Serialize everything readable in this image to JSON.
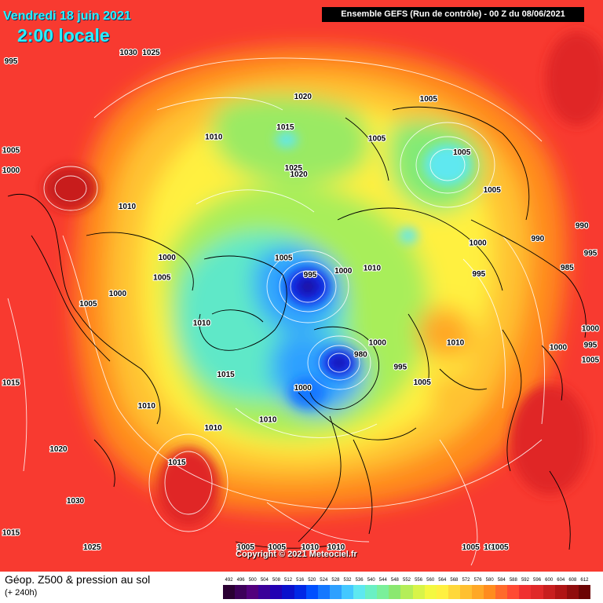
{
  "header": {
    "date": "Vendredi 18 juin 2021",
    "time": "2:00 locale",
    "run": "Ensemble GEFS  (Run de contrôle)  -  00 Z du 08/06/2021"
  },
  "footer": {
    "title": "Géop. Z500 & pression au sol",
    "subtitle": "(+ 240h)",
    "copyright": "Copyright © 2021 Meteociel.fr"
  },
  "legend": {
    "values": [
      "492",
      "496",
      "500",
      "504",
      "508",
      "512",
      "516",
      "520",
      "524",
      "528",
      "532",
      "536",
      "540",
      "544",
      "548",
      "552",
      "556",
      "560",
      "564",
      "568",
      "572",
      "576",
      "580",
      "584",
      "588",
      "592",
      "596",
      "600",
      "604",
      "608",
      "612"
    ],
    "colors": [
      "#2a0033",
      "#3d005a",
      "#52007d",
      "#3a0099",
      "#2200b3",
      "#0a10cc",
      "#0028e6",
      "#0050ff",
      "#1478ff",
      "#2ea0ff",
      "#44c8ff",
      "#5ee8f0",
      "#6af0c4",
      "#7af09a",
      "#8ae870",
      "#b4ee58",
      "#d8f448",
      "#f4f840",
      "#fff040",
      "#ffd83a",
      "#ffc030",
      "#ffa826",
      "#ff8c1e",
      "#ff6a2a",
      "#ff4a32",
      "#f03030",
      "#e02828",
      "#c81e1e",
      "#b01414",
      "#900c0c",
      "#6c0404"
    ]
  },
  "pressure_labels": [
    {
      "text": "1005",
      "lon": 150,
      "lat": 54
    },
    {
      "text": "1030",
      "lon": -150,
      "lat": 38
    },
    {
      "text": "1025",
      "lon": -152,
      "lat": 41
    },
    {
      "text": "1020",
      "lon": -178,
      "lat": 58
    },
    {
      "text": "1015",
      "lon": -172,
      "lat": 62
    },
    {
      "text": "1005",
      "lon": 158,
      "lat": 62
    },
    {
      "text": "1005",
      "lon": 135,
      "lat": 57
    },
    {
      "text": "990",
      "lon": 106,
      "lat": 48
    },
    {
      "text": "990",
      "lon": 106,
      "lat": 54
    },
    {
      "text": "995",
      "lon": 100,
      "lat": 47
    },
    {
      "text": "985",
      "lon": 98,
      "lat": 51
    },
    {
      "text": "1005",
      "lon": 122,
      "lat": 57
    },
    {
      "text": "1000",
      "lon": 110,
      "lat": 62
    },
    {
      "text": "995",
      "lon": 100,
      "lat": 63
    },
    {
      "text": "995",
      "lon": -120,
      "lat": 24
    },
    {
      "text": "1000",
      "lon": -108,
      "lat": 30
    },
    {
      "text": "1005",
      "lon": -110,
      "lat": 28
    },
    {
      "text": "1010",
      "lon": -150,
      "lat": 60
    },
    {
      "text": "1020",
      "lon": -175,
      "lat": 69
    },
    {
      "text": "1025",
      "lon": -173,
      "lat": 68
    },
    {
      "text": "1010",
      "lon": -118,
      "lat": 58
    },
    {
      "text": "1000",
      "lon": -108,
      "lat": 66
    },
    {
      "text": "1000",
      "lon": -93,
      "lat": 60
    },
    {
      "text": "1005",
      "lon": -100,
      "lat": 66
    },
    {
      "text": "1005",
      "lon": -90,
      "lat": 56
    },
    {
      "text": "1015",
      "lon": -78,
      "lat": 36
    },
    {
      "text": "1010",
      "lon": -80,
      "lat": 72
    },
    {
      "text": "1015",
      "lon": -50,
      "lat": 72
    },
    {
      "text": "995",
      "lon": 180,
      "lat": 85
    },
    {
      "text": "1005",
      "lon": -150,
      "lat": 81
    },
    {
      "text": "1000",
      "lon": 135,
      "lat": 82
    },
    {
      "text": "1010",
      "lon": 120,
      "lat": 78
    },
    {
      "text": "1010",
      "lon": 75,
      "lat": 66
    },
    {
      "text": "1000",
      "lon": 80,
      "lat": 52
    },
    {
      "text": "1005",
      "lon": 80,
      "lat": 43
    },
    {
      "text": "1000",
      "lon": 85,
      "lat": 48
    },
    {
      "text": "995",
      "lon": 83,
      "lat": 41
    },
    {
      "text": "1000",
      "lon": 60,
      "lat": 77
    },
    {
      "text": "980",
      "lon": 45,
      "lat": 78
    },
    {
      "text": "995",
      "lon": 55,
      "lat": 72
    },
    {
      "text": "1005",
      "lon": 55,
      "lat": 68
    },
    {
      "text": "1000",
      "lon": -5,
      "lat": 76
    },
    {
      "text": "1010",
      "lon": -20,
      "lat": 70
    },
    {
      "text": "1010",
      "lon": -38,
      "lat": 65
    },
    {
      "text": "1010",
      "lon": -58,
      "lat": 60
    },
    {
      "text": "1020",
      "lon": -60,
      "lat": 47
    },
    {
      "text": "1030",
      "lon": -50,
      "lat": 45
    },
    {
      "text": "1015",
      "lon": -40,
      "lat": 58
    },
    {
      "text": "1015",
      "lon": -58,
      "lat": 30
    },
    {
      "text": "1025",
      "lon": -35,
      "lat": 36
    },
    {
      "text": "1010",
      "lon": 5,
      "lat": 46
    },
    {
      "text": "1010",
      "lon": 0,
      "lat": 44
    },
    {
      "text": "1005",
      "lon": -5,
      "lat": 36
    },
    {
      "text": "1005",
      "lon": -10,
      "lat": 37
    },
    {
      "text": "1005",
      "lon": 25,
      "lat": 36
    },
    {
      "text": "1010",
      "lon": 25,
      "lat": 30
    },
    {
      "text": "1005",
      "lon": 35,
      "lat": 42
    }
  ]
}
